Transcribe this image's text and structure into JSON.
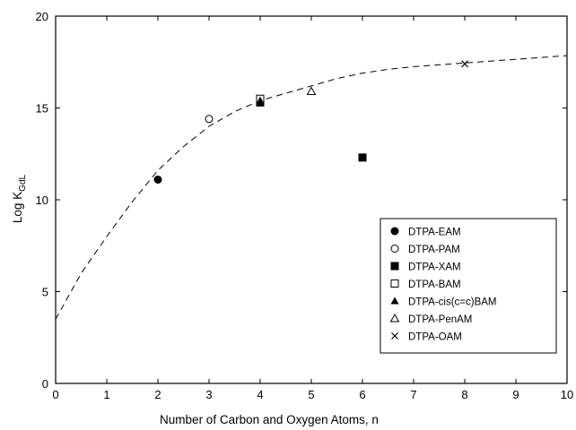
{
  "chart_data": {
    "type": "scatter",
    "xlabel": "Number of Carbon and Oxygen Atoms, n",
    "ylabel_main": "Log K",
    "ylabel_sub": "GdL",
    "xlim": [
      0,
      10
    ],
    "ylim": [
      0,
      20
    ],
    "xticks": [
      "0",
      "1",
      "2",
      "3",
      "4",
      "5",
      "6",
      "7",
      "8",
      "9",
      "10"
    ],
    "yticks": [
      "0",
      "5",
      "10",
      "15",
      "20"
    ],
    "grid": false,
    "legend_position": "bottom-right",
    "series": [
      {
        "name": "DTPA-EAM",
        "marker": "filled-circle",
        "points": [
          {
            "x": 2,
            "y": 11.1
          }
        ]
      },
      {
        "name": "DTPA-PAM",
        "marker": "open-circle",
        "points": [
          {
            "x": 3,
            "y": 14.4
          }
        ]
      },
      {
        "name": "DTPA-XAM",
        "marker": "filled-square",
        "points": [
          {
            "x": 4,
            "y": 15.3
          },
          {
            "x": 6,
            "y": 12.3
          }
        ]
      },
      {
        "name": "DTPA-BAM",
        "marker": "open-square",
        "points": [
          {
            "x": 4,
            "y": 15.5
          }
        ]
      },
      {
        "name": "DTPA-cis(c=c)BAM",
        "marker": "filled-triangle",
        "points": [
          {
            "x": 4,
            "y": 15.4
          }
        ]
      },
      {
        "name": "DTPA-PenAM",
        "marker": "open-triangle",
        "points": [
          {
            "x": 5,
            "y": 15.9
          }
        ]
      },
      {
        "name": "DTPA-OAM",
        "marker": "cross",
        "points": [
          {
            "x": 8,
            "y": 17.4
          }
        ]
      }
    ],
    "fit_curve": {
      "style": "dashed",
      "points": [
        {
          "x": 0,
          "y": 3.5
        },
        {
          "x": 0.5,
          "y": 6.0
        },
        {
          "x": 1,
          "y": 8.0
        },
        {
          "x": 1.5,
          "y": 9.9
        },
        {
          "x": 2,
          "y": 11.6
        },
        {
          "x": 2.5,
          "y": 12.9
        },
        {
          "x": 3,
          "y": 14.0
        },
        {
          "x": 3.5,
          "y": 14.8
        },
        {
          "x": 4,
          "y": 15.4
        },
        {
          "x": 4.5,
          "y": 15.8
        },
        {
          "x": 5,
          "y": 16.2
        },
        {
          "x": 5.5,
          "y": 16.6
        },
        {
          "x": 6,
          "y": 16.9
        },
        {
          "x": 6.5,
          "y": 17.1
        },
        {
          "x": 7,
          "y": 17.25
        },
        {
          "x": 7.5,
          "y": 17.35
        },
        {
          "x": 8,
          "y": 17.45
        },
        {
          "x": 8.5,
          "y": 17.55
        },
        {
          "x": 9,
          "y": 17.65
        },
        {
          "x": 9.5,
          "y": 17.75
        },
        {
          "x": 10,
          "y": 17.85
        }
      ]
    }
  }
}
